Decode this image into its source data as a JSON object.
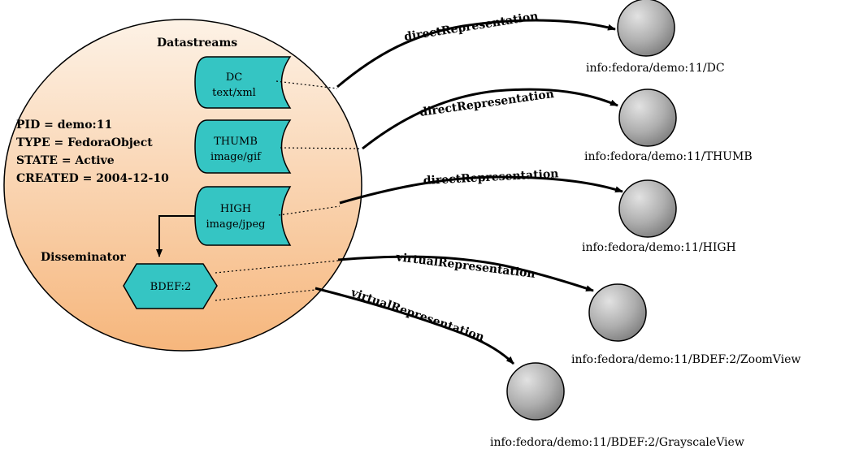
{
  "object": {
    "datastreams_title": "Datastreams",
    "disseminator_title": "Disseminator",
    "properties": [
      "PID = demo:11",
      "TYPE = FedoraObject",
      "STATE = Active",
      "CREATED = 2004-12-10"
    ]
  },
  "datastreams": [
    {
      "name": "DC",
      "mime": "text/xml"
    },
    {
      "name": "THUMB",
      "mime": "image/gif"
    },
    {
      "name": "HIGH",
      "mime": "image/jpeg"
    }
  ],
  "disseminator": {
    "label": "BDEF:2"
  },
  "relations": [
    {
      "label": "directRepresentation",
      "target": "info:fedora/demo:11/DC"
    },
    {
      "label": "directRepresentation",
      "target": "info:fedora/demo:11/THUMB"
    },
    {
      "label": "directRepresentation",
      "target": "info:fedora/demo:11/HIGH"
    },
    {
      "label": "virtualRepresentation",
      "target": "info:fedora/demo:11/BDEF:2/ZoomView"
    },
    {
      "label": "virtualRepresentation",
      "target": "info:fedora/demo:11/BDEF:2/GrayscaleView"
    }
  ],
  "colors": {
    "object_fill_top": "#fdf2e6",
    "object_fill_bottom": "#f6b67c",
    "datastream_fill": "#35c5c3",
    "target_fill": "#a9a9a9"
  }
}
